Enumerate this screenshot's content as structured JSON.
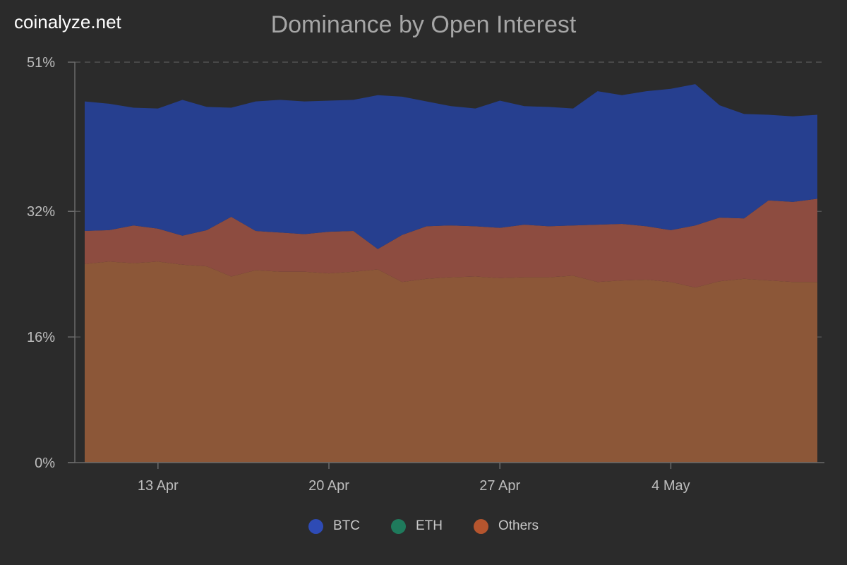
{
  "watermark": "coinalyze.net",
  "chart_data": {
    "type": "area",
    "stacked": true,
    "title": "Dominance by Open Interest",
    "x": [
      "Apr 9",
      "Apr 10",
      "Apr 11",
      "Apr 12",
      "Apr 13",
      "Apr 14",
      "Apr 15",
      "Apr 16",
      "Apr 17",
      "Apr 18",
      "Apr 19",
      "Apr 20",
      "Apr 21",
      "Apr 22",
      "Apr 23",
      "Apr 24",
      "Apr 25",
      "Apr 26",
      "Apr 27",
      "Apr 28",
      "Apr 29",
      "Apr 30",
      "May 1",
      "May 2",
      "May 3",
      "May 4",
      "May 5",
      "May 6",
      "May 7",
      "May 8",
      "May 9"
    ],
    "x_tick_labels": [
      "13 Apr",
      "20 Apr",
      "27 Apr",
      "4 May"
    ],
    "x_tick_indices": [
      3,
      10,
      17,
      24
    ],
    "y_tick_labels": [
      "0%",
      "16%",
      "32%",
      "51%"
    ],
    "y_tick_values": [
      0,
      16,
      32,
      51
    ],
    "ylim": [
      0,
      51
    ],
    "grid": "horizontal-dashed",
    "legend_position": "bottom",
    "series": [
      {
        "name": "Others",
        "color": "#8c5738",
        "legend_color": "#b5552e",
        "values": [
          25.3,
          25.6,
          25.4,
          25.6,
          25.2,
          25.0,
          23.7,
          24.5,
          24.3,
          24.3,
          24.1,
          24.3,
          24.6,
          23.0,
          23.4,
          23.6,
          23.7,
          23.5,
          23.6,
          23.6,
          23.8,
          23.0,
          23.2,
          23.3,
          23.0,
          22.3,
          23.1,
          23.4,
          23.2,
          23.0,
          23.0
        ]
      },
      {
        "name": "ETH",
        "color": "#8d4c40",
        "legend_color": "#1f7a5c",
        "values": [
          4.2,
          4.0,
          4.8,
          4.2,
          3.7,
          4.6,
          7.6,
          5.0,
          5.0,
          4.8,
          5.3,
          5.2,
          2.6,
          6.0,
          6.7,
          6.6,
          6.4,
          6.4,
          6.7,
          6.5,
          6.4,
          7.3,
          7.2,
          6.8,
          6.6,
          7.9,
          8.1,
          7.7,
          10.2,
          10.2,
          10.6
        ]
      },
      {
        "name": "BTC",
        "color": "#263f8f",
        "legend_color": "#2e4bb5",
        "values": [
          16.5,
          16.1,
          15.0,
          15.3,
          17.3,
          15.7,
          13.9,
          16.5,
          16.9,
          16.9,
          16.7,
          16.7,
          19.6,
          17.6,
          15.9,
          15.2,
          15.0,
          16.2,
          15.1,
          15.2,
          14.9,
          17.0,
          16.4,
          17.2,
          18.0,
          18.0,
          14.3,
          13.3,
          10.9,
          10.9,
          10.7
        ]
      }
    ]
  }
}
